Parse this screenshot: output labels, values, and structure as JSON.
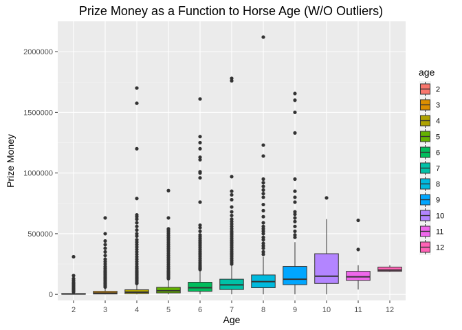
{
  "chart_data": {
    "type": "box",
    "title": "Prize Money as a Function to Horse Age (W/O Outliers)",
    "xlabel": "Age",
    "ylabel": "Prize Money",
    "ylim": [
      -50000,
      2250000
    ],
    "y_ticks": [
      0,
      500000,
      1000000,
      1500000,
      2000000
    ],
    "y_tick_labels": [
      "0",
      "500000",
      "1000000",
      "1500000",
      "2000000"
    ],
    "categories": [
      "2",
      "3",
      "4",
      "5",
      "6",
      "7",
      "8",
      "9",
      "10",
      "11",
      "12"
    ],
    "grid": true,
    "legend": {
      "title": "age",
      "position": "right",
      "entries": [
        "2",
        "3",
        "4",
        "5",
        "6",
        "7",
        "8",
        "9",
        "10",
        "11",
        "12"
      ]
    },
    "colors": [
      "#F8766D",
      "#DB8E00",
      "#AEA200",
      "#64B200",
      "#00BD5C",
      "#00C1A7",
      "#00BADE",
      "#00A6FF",
      "#B385FF",
      "#EF67EB",
      "#FF63B6"
    ],
    "boxes": [
      {
        "age": "2",
        "whisker_low": 0,
        "q1": 1000,
        "median": 3000,
        "q3": 7000,
        "whisker_high": 15000,
        "outliers": [
          20000,
          30000,
          40000,
          50000,
          60000,
          70000,
          80000,
          90000,
          100000,
          115000,
          130000,
          155000,
          310000
        ]
      },
      {
        "age": "3",
        "whisker_low": 0,
        "q1": 3000,
        "median": 10000,
        "q3": 25000,
        "whisker_high": 55000,
        "outliers": [
          60000,
          70000,
          80000,
          90000,
          100000,
          110000,
          120000,
          130000,
          140000,
          150000,
          160000,
          170000,
          180000,
          190000,
          200000,
          215000,
          230000,
          250000,
          270000,
          290000,
          320000,
          350000,
          380000,
          410000,
          440000,
          500000,
          630000
        ]
      },
      {
        "age": "4",
        "whisker_low": 0,
        "q1": 6000,
        "median": 18000,
        "q3": 38000,
        "whisker_high": 85000,
        "outliers": [
          90000,
          100000,
          110000,
          120000,
          130000,
          140000,
          150000,
          160000,
          170000,
          180000,
          190000,
          200000,
          215000,
          230000,
          250000,
          270000,
          290000,
          310000,
          330000,
          350000,
          370000,
          390000,
          410000,
          430000,
          450000,
          480000,
          500000,
          530000,
          560000,
          590000,
          620000,
          640000,
          655000,
          790000,
          1200000,
          1575000,
          1700000
        ]
      },
      {
        "age": "5",
        "whisker_low": 0,
        "q1": 12000,
        "median": 30000,
        "q3": 58000,
        "whisker_high": 125000,
        "outliers": [
          130000,
          140000,
          150000,
          160000,
          170000,
          180000,
          190000,
          200000,
          215000,
          230000,
          245000,
          260000,
          275000,
          290000,
          305000,
          320000,
          335000,
          350000,
          365000,
          380000,
          395000,
          410000,
          425000,
          440000,
          455000,
          470000,
          485000,
          500000,
          515000,
          530000,
          540000,
          630000,
          855000
        ]
      },
      {
        "age": "6",
        "whisker_low": 0,
        "q1": 25000,
        "median": 55000,
        "q3": 100000,
        "whisker_high": 200000,
        "outliers": [
          205000,
          215000,
          225000,
          235000,
          250000,
          265000,
          280000,
          295000,
          310000,
          325000,
          340000,
          355000,
          370000,
          385000,
          400000,
          415000,
          430000,
          445000,
          460000,
          475000,
          490000,
          520000,
          550000,
          570000,
          760000,
          960000,
          1000000,
          1010000,
          1110000,
          1130000,
          1200000,
          1250000,
          1300000,
          1610000
        ]
      },
      {
        "age": "7",
        "whisker_low": 0,
        "q1": 40000,
        "median": 78000,
        "q3": 125000,
        "whisker_high": 240000,
        "outliers": [
          250000,
          265000,
          280000,
          295000,
          310000,
          325000,
          340000,
          355000,
          370000,
          385000,
          400000,
          415000,
          430000,
          445000,
          460000,
          475000,
          490000,
          505000,
          520000,
          540000,
          560000,
          580000,
          600000,
          620000,
          650000,
          680000,
          720000,
          780000,
          820000,
          850000,
          970000,
          1760000,
          1780000
        ]
      },
      {
        "age": "8",
        "whisker_low": 0,
        "q1": 55000,
        "median": 105000,
        "q3": 160000,
        "whisker_high": 310000,
        "outliers": [
          330000,
          350000,
          380000,
          400000,
          420000,
          450000,
          470000,
          500000,
          520000,
          540000,
          560000,
          590000,
          640000,
          690000,
          740000,
          800000,
          830000,
          860000,
          890000,
          920000,
          950000,
          1140000,
          1230000,
          2120000
        ]
      },
      {
        "age": "9",
        "whisker_low": 0,
        "q1": 80000,
        "median": 125000,
        "q3": 230000,
        "whisker_high": 430000,
        "outliers": [
          470000,
          490000,
          520000,
          560000,
          600000,
          630000,
          660000,
          680000,
          760000,
          800000,
          850000,
          950000,
          1330000,
          1500000,
          1600000,
          1655000
        ]
      },
      {
        "age": "10",
        "whisker_low": 0,
        "q1": 90000,
        "median": 150000,
        "q3": 335000,
        "whisker_high": 620000,
        "outliers": [
          795000
        ]
      },
      {
        "age": "11",
        "whisker_low": 40000,
        "q1": 115000,
        "median": 145000,
        "q3": 190000,
        "whisker_high": 240000,
        "outliers": [
          370000,
          610000
        ]
      },
      {
        "age": "12",
        "whisker_low": 185000,
        "q1": 190000,
        "median": 200000,
        "q3": 225000,
        "whisker_high": 240000,
        "outliers": []
      }
    ]
  }
}
